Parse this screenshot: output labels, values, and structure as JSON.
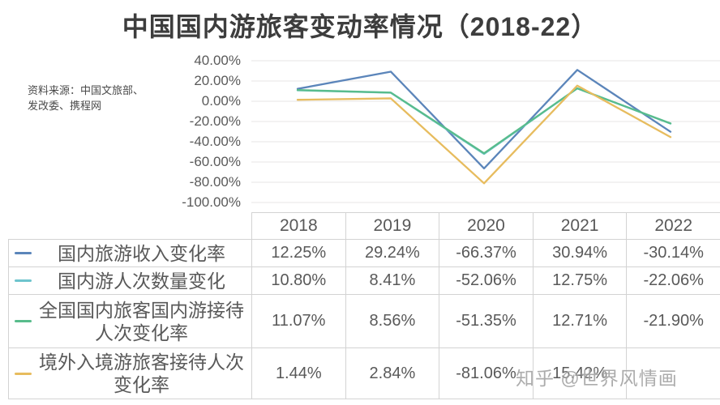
{
  "title": "中国国内游旅客变动率情况（2018-22）",
  "source": {
    "line1": "资料来源：中国文旅部、",
    "line2": "发改委、携程网"
  },
  "watermark": "知乎 @世界风情画",
  "axis": {
    "tick_labels": [
      "40.00%",
      "20.00%",
      "0.00%",
      "-20.00%",
      "-40.00%",
      "-60.00%",
      "-80.00%",
      "-100.00%"
    ],
    "tick_values": [
      40,
      20,
      0,
      -20,
      -40,
      -60,
      -80,
      -100
    ]
  },
  "table": {
    "years": [
      "2018",
      "2019",
      "2020",
      "2021",
      "2022"
    ],
    "rows": [
      {
        "label": "国内旅游收入变化率",
        "values": [
          "12.25%",
          "29.24%",
          "-66.37%",
          "30.94%",
          "-30.14%"
        ]
      },
      {
        "label": "国内游人次数量变化",
        "values": [
          "10.80%",
          "8.41%",
          "-52.06%",
          "12.75%",
          "-22.06%"
        ]
      },
      {
        "label": "全国国内旅客国内游接待人次变化率",
        "values": [
          "11.07%",
          "8.56%",
          "-51.35%",
          "12.71%",
          "-21.90%"
        ]
      },
      {
        "label": "境外入境游旅客接待人次变化率",
        "values": [
          "1.44%",
          "2.84%",
          "-81.06%",
          "15.42%",
          ""
        ]
      }
    ]
  },
  "chart_data": {
    "type": "line",
    "title": "中国国内游旅客变动率情况（2018-22）",
    "categories": [
      "2018",
      "2019",
      "2020",
      "2021",
      "2022"
    ],
    "series": [
      {
        "name": "国内旅游收入变化率",
        "color": "#5b85ba",
        "values": [
          12.25,
          29.24,
          -66.37,
          30.94,
          -30.14
        ]
      },
      {
        "name": "国内游人次数量变化",
        "color": "#6ec4cd",
        "values": [
          10.8,
          8.41,
          -52.06,
          12.75,
          -22.06
        ]
      },
      {
        "name": "全国国内旅客国内游接待人次变化率",
        "color": "#58bc8c",
        "values": [
          11.07,
          8.56,
          -51.35,
          12.71,
          -21.9
        ]
      },
      {
        "name": "境外入境游旅客接待人次变化率",
        "color": "#e7bc5e",
        "values": [
          1.44,
          2.84,
          -81.06,
          15.42,
          -35.4
        ]
      }
    ],
    "ylim": [
      -100,
      40
    ],
    "ytick_step": 20,
    "grid": true,
    "legend_position": "table-left",
    "gridline_color": "#e7e5e4"
  }
}
